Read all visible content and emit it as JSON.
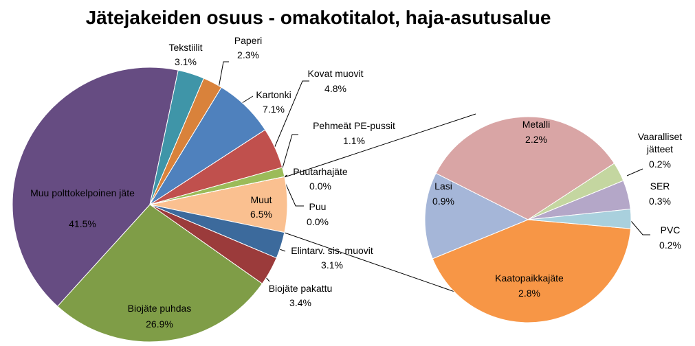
{
  "chart_data": [
    {
      "type": "pie",
      "title": "Jätejakeiden osuus - omakotitalot, haja-asutusalue",
      "categories": [
        "Muut",
        "Elintarv. sis. muovit",
        "Biojäte pakattu",
        "Biojäte puhdas",
        "Muu polttokelpoinen jäte",
        "Tekstiilit",
        "Paperi",
        "Kartonki",
        "Kovat muovit",
        "Pehmeät PE-pussit",
        "Puutarhajäte",
        "Puu"
      ],
      "values": [
        6.5,
        3.1,
        3.4,
        26.9,
        41.5,
        3.1,
        2.3,
        7.1,
        4.8,
        1.1,
        0,
        0
      ],
      "value_labels": [
        "6.5%",
        "3.1%",
        "3.4%",
        "26.9%",
        "41.5%",
        "3.1%",
        "2.3%",
        "7.1%",
        "4.8%",
        "1.1%",
        "0.0%",
        "0.0%"
      ],
      "colors": [
        "#fac090",
        "#3c6a9c",
        "#9b3b3b",
        "#7f9d47",
        "#664c82",
        "#3f95a8",
        "#d9823b",
        "#4f81bd",
        "#c0504d",
        "#9bbb59",
        "#4bacc6",
        "#f79646"
      ]
    },
    {
      "type": "pie",
      "categories": [
        "Kaatopaikkajäte",
        "Lasi",
        "Metalli",
        "Vaaralliset jätteet",
        "SER",
        "PVC"
      ],
      "values": [
        2.8,
        0.9,
        2.2,
        0.2,
        0.3,
        0.2
      ],
      "value_labels": [
        "2.8%",
        "0.9%",
        "2.2%",
        "0.2%",
        "0.3%",
        "0.2%"
      ],
      "colors": [
        "#f79646",
        "#a5b6d8",
        "#d9a5a5",
        "#c4d6a0",
        "#b4a7c8",
        "#a9d0dd"
      ]
    }
  ]
}
